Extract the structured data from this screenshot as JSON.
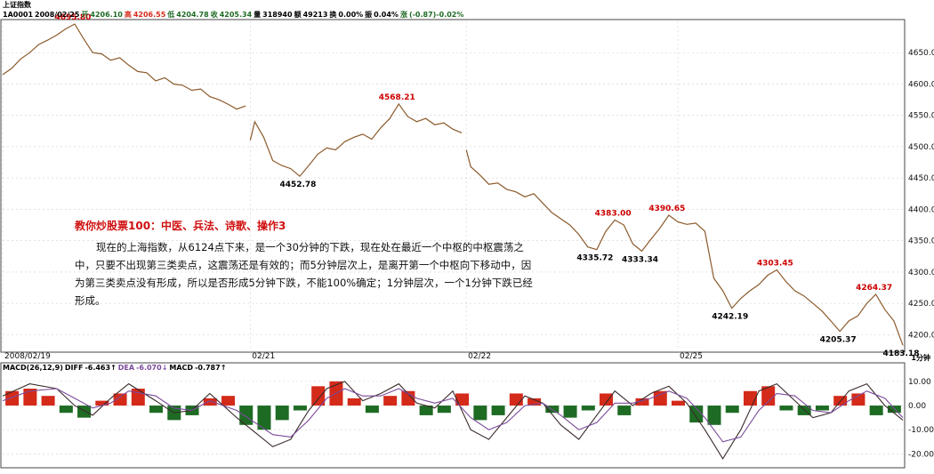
{
  "header": {
    "index_name": "上证指数",
    "code": "1A0001",
    "date": "2008/02/25",
    "open_label": "开",
    "open": "4206.10",
    "high_label": "高",
    "high": "4206.55",
    "low_label": "低",
    "low": "4204.78",
    "close_label": "收",
    "close": "4205.34",
    "volume_label": "量",
    "volume": "318940",
    "amount_label": "额",
    "amount": "49213",
    "turnover_label": "换",
    "turnover": "0.00%",
    "amplitude_label": "振",
    "amplitude": "0.04%",
    "change_label": "涨",
    "change": "(-0.87)-0.02%"
  },
  "period_label": "1分钟",
  "annotation": {
    "title": "教你炒股票100：中医、兵法、诗歌、操作3",
    "body": "现在的上海指数，从6124点下来，是一个30分钟的下跌，现在处在最近一个中枢的中枢震荡之中，只要不出现第三类卖点，这震荡还是有效的；而5分钟层次上，是离开第一个中枢向下移动中，因为第三类卖点没有形成，所以是否形成5分钟下跌，不能100%确定；1分钟层次，一个1分钟下跌已经形成。"
  },
  "colors": {
    "up": "#d42a1a",
    "down": "#1e6b24",
    "price_line": "#8b5a2b",
    "diff_line": "#3a2a2a",
    "dea_line": "#7a4a9a",
    "high_label": "#cc0000",
    "low_label": "#000000",
    "grid": "#d0d0d0"
  },
  "chart_data": [
    {
      "type": "line",
      "title": "",
      "x_ticks": [
        "2008/02/19",
        "02/21",
        "02/22",
        "02/25"
      ],
      "y_ticks": [
        4200.0,
        4250.0,
        4300.0,
        4350.0,
        4400.0,
        4450.0,
        4500.0,
        4550.0,
        4600.0,
        4650.0
      ],
      "ylim": [
        4175,
        4700
      ],
      "xlim": [
        0,
        100
      ],
      "series": [
        {
          "segment": 1,
          "points": [
            [
              0,
              4615
            ],
            [
              1,
              4625
            ],
            [
              2,
              4640
            ],
            [
              3,
              4650
            ],
            [
              4,
              4663
            ],
            [
              5,
              4670
            ],
            [
              6,
              4678
            ],
            [
              7,
              4688
            ],
            [
              8,
              4695.8
            ],
            [
              9,
              4672
            ],
            [
              10,
              4650
            ],
            [
              11,
              4648
            ],
            [
              12,
              4638
            ],
            [
              13,
              4642
            ],
            [
              14,
              4630
            ],
            [
              15,
              4620
            ],
            [
              16,
              4618
            ],
            [
              17,
              4605
            ],
            [
              18,
              4610
            ],
            [
              19,
              4600
            ],
            [
              20,
              4598
            ],
            [
              21,
              4590
            ],
            [
              22,
              4592
            ],
            [
              23,
              4580
            ],
            [
              24,
              4575
            ],
            [
              25,
              4568
            ],
            [
              26,
              4560
            ],
            [
              27,
              4565
            ]
          ]
        },
        {
          "segment": 2,
          "points": [
            [
              27.5,
              4510
            ],
            [
              28,
              4540
            ],
            [
              29,
              4515
            ],
            [
              30,
              4478
            ],
            [
              31,
              4470
            ],
            [
              32,
              4465
            ],
            [
              33,
              4452.78
            ],
            [
              34,
              4470
            ],
            [
              35,
              4488
            ],
            [
              36,
              4498
            ],
            [
              37,
              4495
            ],
            [
              38,
              4508
            ],
            [
              39,
              4515
            ],
            [
              40,
              4520
            ],
            [
              41,
              4512
            ],
            [
              42,
              4530
            ],
            [
              43,
              4545
            ],
            [
              44,
              4568.21
            ],
            [
              45,
              4548
            ],
            [
              46,
              4540
            ],
            [
              47,
              4545
            ],
            [
              48,
              4535
            ],
            [
              49,
              4538
            ],
            [
              50,
              4528
            ],
            [
              51,
              4522
            ]
          ]
        },
        {
          "segment": 3,
          "points": [
            [
              51.5,
              4495
            ],
            [
              52,
              4468
            ],
            [
              53,
              4455
            ],
            [
              54,
              4440
            ],
            [
              55,
              4442
            ],
            [
              56,
              4432
            ],
            [
              57,
              4428
            ],
            [
              58,
              4420
            ],
            [
              59,
              4425
            ],
            [
              60,
              4410
            ],
            [
              61,
              4395
            ],
            [
              62,
              4385
            ],
            [
              63,
              4375
            ],
            [
              64,
              4360
            ],
            [
              65,
              4340
            ],
            [
              66,
              4335.72
            ],
            [
              67,
              4365
            ],
            [
              68,
              4383.0
            ],
            [
              69,
              4375
            ],
            [
              70,
              4345
            ],
            [
              71,
              4333.34
            ],
            [
              72,
              4352
            ],
            [
              73,
              4370
            ],
            [
              74,
              4390.65
            ],
            [
              75,
              4380
            ],
            [
              76,
              4376
            ],
            [
              77,
              4378
            ],
            [
              78,
              4365
            ],
            [
              79,
              4290
            ],
            [
              80,
              4270
            ],
            [
              81,
              4242.19
            ],
            [
              82,
              4258
            ],
            [
              83,
              4270
            ],
            [
              84,
              4280
            ],
            [
              85,
              4295
            ],
            [
              86,
              4303.45
            ],
            [
              87,
              4285
            ],
            [
              88,
              4270
            ],
            [
              89,
              4262
            ],
            [
              90,
              4250
            ],
            [
              91,
              4238
            ],
            [
              92,
              4222
            ],
            [
              93,
              4205.37
            ],
            [
              94,
              4222
            ],
            [
              95,
              4230
            ],
            [
              96,
              4250
            ],
            [
              97,
              4264.37
            ],
            [
              98,
              4240
            ],
            [
              99,
              4222
            ],
            [
              100,
              4183.18
            ]
          ]
        }
      ],
      "annotations": [
        {
          "x": 8,
          "y": 4695.8,
          "text": "4695.80",
          "kind": "high"
        },
        {
          "x": 33,
          "y": 4452.78,
          "text": "4452.78",
          "kind": "low"
        },
        {
          "x": 44,
          "y": 4568.21,
          "text": "4568.21",
          "kind": "high"
        },
        {
          "x": 66,
          "y": 4335.72,
          "text": "4335.72",
          "kind": "low"
        },
        {
          "x": 68,
          "y": 4383.0,
          "text": "4383.00",
          "kind": "high"
        },
        {
          "x": 71,
          "y": 4333.34,
          "text": "4333.34",
          "kind": "low"
        },
        {
          "x": 74,
          "y": 4390.65,
          "text": "4390.65",
          "kind": "high"
        },
        {
          "x": 81,
          "y": 4242.19,
          "text": "4242.19",
          "kind": "low"
        },
        {
          "x": 86,
          "y": 4303.45,
          "text": "4303.45",
          "kind": "high"
        },
        {
          "x": 93,
          "y": 4205.37,
          "text": "4205.37",
          "kind": "low"
        },
        {
          "x": 97,
          "y": 4264.37,
          "text": "4264.37",
          "kind": "high"
        },
        {
          "x": 100,
          "y": 4183.18,
          "text": "4183.18",
          "kind": "low"
        }
      ]
    },
    {
      "type": "bar",
      "title": "MACD(26,12,9)",
      "legend": [
        {
          "name": "DIFF",
          "value": "-6.463↑"
        },
        {
          "name": "DEA",
          "value": "-6.070↓"
        },
        {
          "name": "MACD",
          "value": "-0.787↑"
        }
      ],
      "y_ticks": [
        10.0,
        0.0,
        -10.0,
        -20.0
      ],
      "ylim": [
        -25,
        14
      ],
      "xlim": [
        0,
        100
      ],
      "histogram": [
        [
          1,
          6
        ],
        [
          3,
          7
        ],
        [
          5,
          4
        ],
        [
          7,
          -3
        ],
        [
          9,
          -5
        ],
        [
          11,
          2
        ],
        [
          13,
          5
        ],
        [
          15,
          7
        ],
        [
          17,
          -3
        ],
        [
          19,
          -6
        ],
        [
          21,
          -4
        ],
        [
          23,
          3
        ],
        [
          25,
          4
        ],
        [
          27,
          -8
        ],
        [
          29,
          -10
        ],
        [
          31,
          -6
        ],
        [
          33,
          -2
        ],
        [
          35,
          8
        ],
        [
          37,
          10
        ],
        [
          39,
          3
        ],
        [
          41,
          -3
        ],
        [
          43,
          4
        ],
        [
          45,
          6
        ],
        [
          47,
          -4
        ],
        [
          49,
          -3
        ],
        [
          51,
          5
        ],
        [
          53,
          -6
        ],
        [
          55,
          -4
        ],
        [
          57,
          5
        ],
        [
          59,
          3
        ],
        [
          61,
          -3
        ],
        [
          63,
          -5
        ],
        [
          65,
          -2
        ],
        [
          67,
          5
        ],
        [
          69,
          -4
        ],
        [
          71,
          3
        ],
        [
          73,
          6
        ],
        [
          75,
          2
        ],
        [
          77,
          -7
        ],
        [
          79,
          -8
        ],
        [
          81,
          -3
        ],
        [
          83,
          6
        ],
        [
          85,
          8
        ],
        [
          87,
          -2
        ],
        [
          89,
          -4
        ],
        [
          91,
          -2
        ],
        [
          93,
          4
        ],
        [
          95,
          5
        ],
        [
          97,
          -4
        ],
        [
          99,
          -3
        ]
      ],
      "diff": [
        [
          0,
          4
        ],
        [
          3,
          9
        ],
        [
          6,
          7
        ],
        [
          8,
          0
        ],
        [
          10,
          -4
        ],
        [
          12,
          3
        ],
        [
          14,
          9
        ],
        [
          17,
          2
        ],
        [
          19,
          -3
        ],
        [
          21,
          -2
        ],
        [
          23,
          5
        ],
        [
          26,
          -5
        ],
        [
          28,
          -11
        ],
        [
          30,
          -17
        ],
        [
          32,
          -14
        ],
        [
          34,
          -2
        ],
        [
          36,
          7
        ],
        [
          38,
          10
        ],
        [
          40,
          2
        ],
        [
          42,
          5
        ],
        [
          44,
          9
        ],
        [
          46,
          1
        ],
        [
          48,
          -1
        ],
        [
          50,
          6
        ],
        [
          52,
          -10
        ],
        [
          54,
          -14
        ],
        [
          56,
          -5
        ],
        [
          58,
          4
        ],
        [
          60,
          1
        ],
        [
          62,
          -8
        ],
        [
          64,
          -14
        ],
        [
          66,
          -4
        ],
        [
          68,
          6
        ],
        [
          70,
          0
        ],
        [
          72,
          5
        ],
        [
          74,
          8
        ],
        [
          76,
          1
        ],
        [
          78,
          -10
        ],
        [
          80,
          -22
        ],
        [
          82,
          -10
        ],
        [
          84,
          6
        ],
        [
          86,
          9
        ],
        [
          88,
          2
        ],
        [
          90,
          -5
        ],
        [
          92,
          -3
        ],
        [
          94,
          6
        ],
        [
          96,
          9
        ],
        [
          98,
          0
        ],
        [
          100,
          -6
        ]
      ],
      "dea": [
        [
          0,
          2
        ],
        [
          3,
          6
        ],
        [
          6,
          7
        ],
        [
          8,
          3
        ],
        [
          10,
          -1
        ],
        [
          12,
          1
        ],
        [
          14,
          6
        ],
        [
          17,
          4
        ],
        [
          19,
          -1
        ],
        [
          21,
          -2
        ],
        [
          23,
          2
        ],
        [
          26,
          -2
        ],
        [
          28,
          -7
        ],
        [
          30,
          -12
        ],
        [
          32,
          -13
        ],
        [
          34,
          -6
        ],
        [
          36,
          3
        ],
        [
          38,
          7
        ],
        [
          40,
          4
        ],
        [
          42,
          4
        ],
        [
          44,
          7
        ],
        [
          46,
          3
        ],
        [
          48,
          1
        ],
        [
          50,
          3
        ],
        [
          52,
          -5
        ],
        [
          54,
          -10
        ],
        [
          56,
          -7
        ],
        [
          58,
          0
        ],
        [
          60,
          1
        ],
        [
          62,
          -4
        ],
        [
          64,
          -10
        ],
        [
          66,
          -7
        ],
        [
          68,
          1
        ],
        [
          70,
          1
        ],
        [
          72,
          3
        ],
        [
          74,
          6
        ],
        [
          76,
          3
        ],
        [
          78,
          -5
        ],
        [
          80,
          -15
        ],
        [
          82,
          -13
        ],
        [
          84,
          -2
        ],
        [
          86,
          5
        ],
        [
          88,
          4
        ],
        [
          90,
          -2
        ],
        [
          92,
          -3
        ],
        [
          94,
          2
        ],
        [
          96,
          6
        ],
        [
          98,
          3
        ],
        [
          100,
          -5
        ]
      ]
    }
  ]
}
